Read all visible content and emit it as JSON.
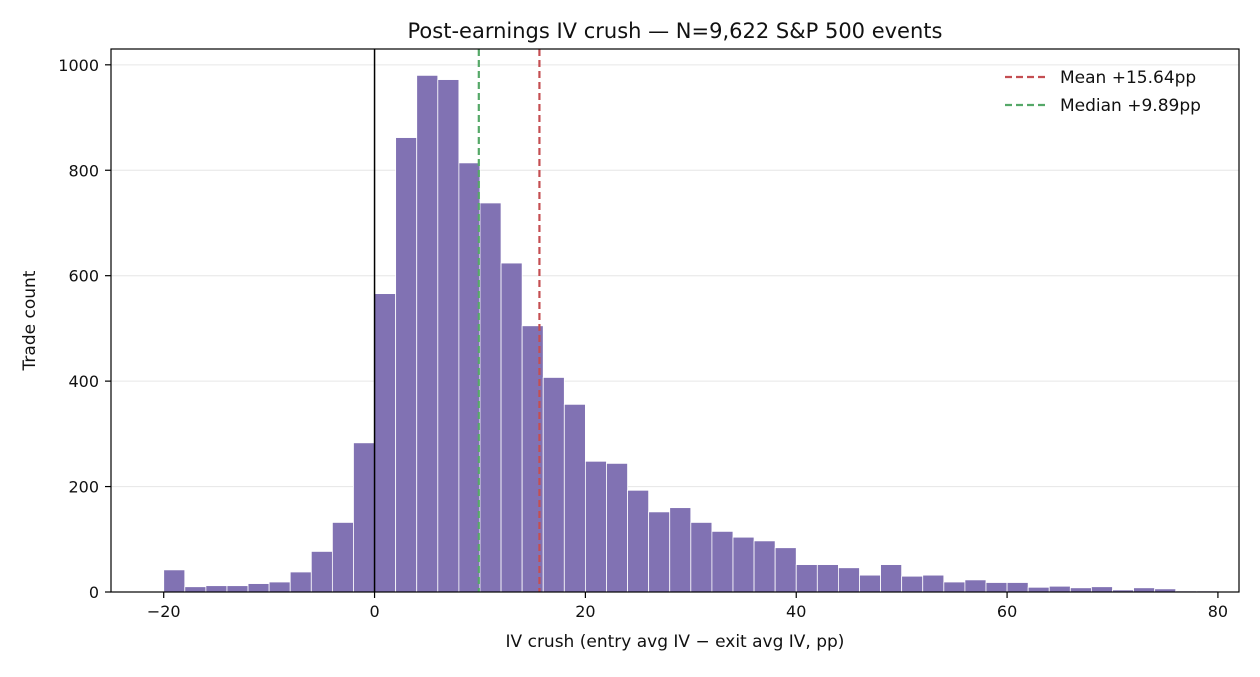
{
  "chart_data": {
    "type": "bar",
    "title": "Post-earnings IV crush — N=9,622 S&P 500 events",
    "xlabel": "IV crush (entry avg IV − exit avg IV, pp)",
    "ylabel": "Trade count",
    "xlim": [
      -25,
      82
    ],
    "ylim": [
      0,
      1030
    ],
    "xticks": [
      -20,
      0,
      20,
      40,
      60,
      80
    ],
    "xtick_labels": [
      "−20",
      "0",
      "20",
      "40",
      "60",
      "80"
    ],
    "yticks": [
      0,
      200,
      400,
      600,
      800,
      1000
    ],
    "ytick_labels": [
      "0",
      "200",
      "400",
      "600",
      "800",
      "1000"
    ],
    "grid": "horizontal",
    "bar_color": "#8172b3",
    "bin_width": 2,
    "bins": [
      {
        "x0": -20,
        "count": 42
      },
      {
        "x0": -18,
        "count": 10
      },
      {
        "x0": -16,
        "count": 12
      },
      {
        "x0": -14,
        "count": 12
      },
      {
        "x0": -12,
        "count": 16
      },
      {
        "x0": -10,
        "count": 19
      },
      {
        "x0": -8,
        "count": 38
      },
      {
        "x0": -6,
        "count": 77
      },
      {
        "x0": -4,
        "count": 132
      },
      {
        "x0": -2,
        "count": 283
      },
      {
        "x0": 0,
        "count": 566
      },
      {
        "x0": 2,
        "count": 862
      },
      {
        "x0": 4,
        "count": 980
      },
      {
        "x0": 6,
        "count": 972
      },
      {
        "x0": 8,
        "count": 814
      },
      {
        "x0": 10,
        "count": 738
      },
      {
        "x0": 12,
        "count": 624
      },
      {
        "x0": 14,
        "count": 505
      },
      {
        "x0": 16,
        "count": 407
      },
      {
        "x0": 18,
        "count": 356
      },
      {
        "x0": 20,
        "count": 248
      },
      {
        "x0": 22,
        "count": 244
      },
      {
        "x0": 24,
        "count": 193
      },
      {
        "x0": 26,
        "count": 152
      },
      {
        "x0": 28,
        "count": 160
      },
      {
        "x0": 30,
        "count": 132
      },
      {
        "x0": 32,
        "count": 115
      },
      {
        "x0": 34,
        "count": 104
      },
      {
        "x0": 36,
        "count": 97
      },
      {
        "x0": 38,
        "count": 84
      },
      {
        "x0": 40,
        "count": 52
      },
      {
        "x0": 42,
        "count": 52
      },
      {
        "x0": 44,
        "count": 46
      },
      {
        "x0": 46,
        "count": 32
      },
      {
        "x0": 48,
        "count": 52
      },
      {
        "x0": 50,
        "count": 30
      },
      {
        "x0": 52,
        "count": 32
      },
      {
        "x0": 54,
        "count": 19
      },
      {
        "x0": 56,
        "count": 23
      },
      {
        "x0": 58,
        "count": 18
      },
      {
        "x0": 60,
        "count": 18
      },
      {
        "x0": 62,
        "count": 9
      },
      {
        "x0": 64,
        "count": 11
      },
      {
        "x0": 66,
        "count": 8
      },
      {
        "x0": 68,
        "count": 10
      },
      {
        "x0": 70,
        "count": 4
      },
      {
        "x0": 72,
        "count": 8
      },
      {
        "x0": 74,
        "count": 6
      },
      {
        "x0": 76,
        "count": 2
      },
      {
        "x0": 78,
        "count": 2
      }
    ],
    "reference_lines": [
      {
        "x": 0,
        "color": "#000000",
        "style": "solid"
      },
      {
        "x": 15.64,
        "color": "#c44e52",
        "style": "dashed",
        "label": "Mean +15.64pp"
      },
      {
        "x": 9.89,
        "color": "#55a868",
        "style": "dashed",
        "label": "Median +9.89pp"
      }
    ],
    "legend": {
      "position": "top-right",
      "entries": [
        {
          "label": "Mean +15.64pp",
          "color": "#c44e52"
        },
        {
          "label": "Median +9.89pp",
          "color": "#55a868"
        }
      ]
    }
  }
}
